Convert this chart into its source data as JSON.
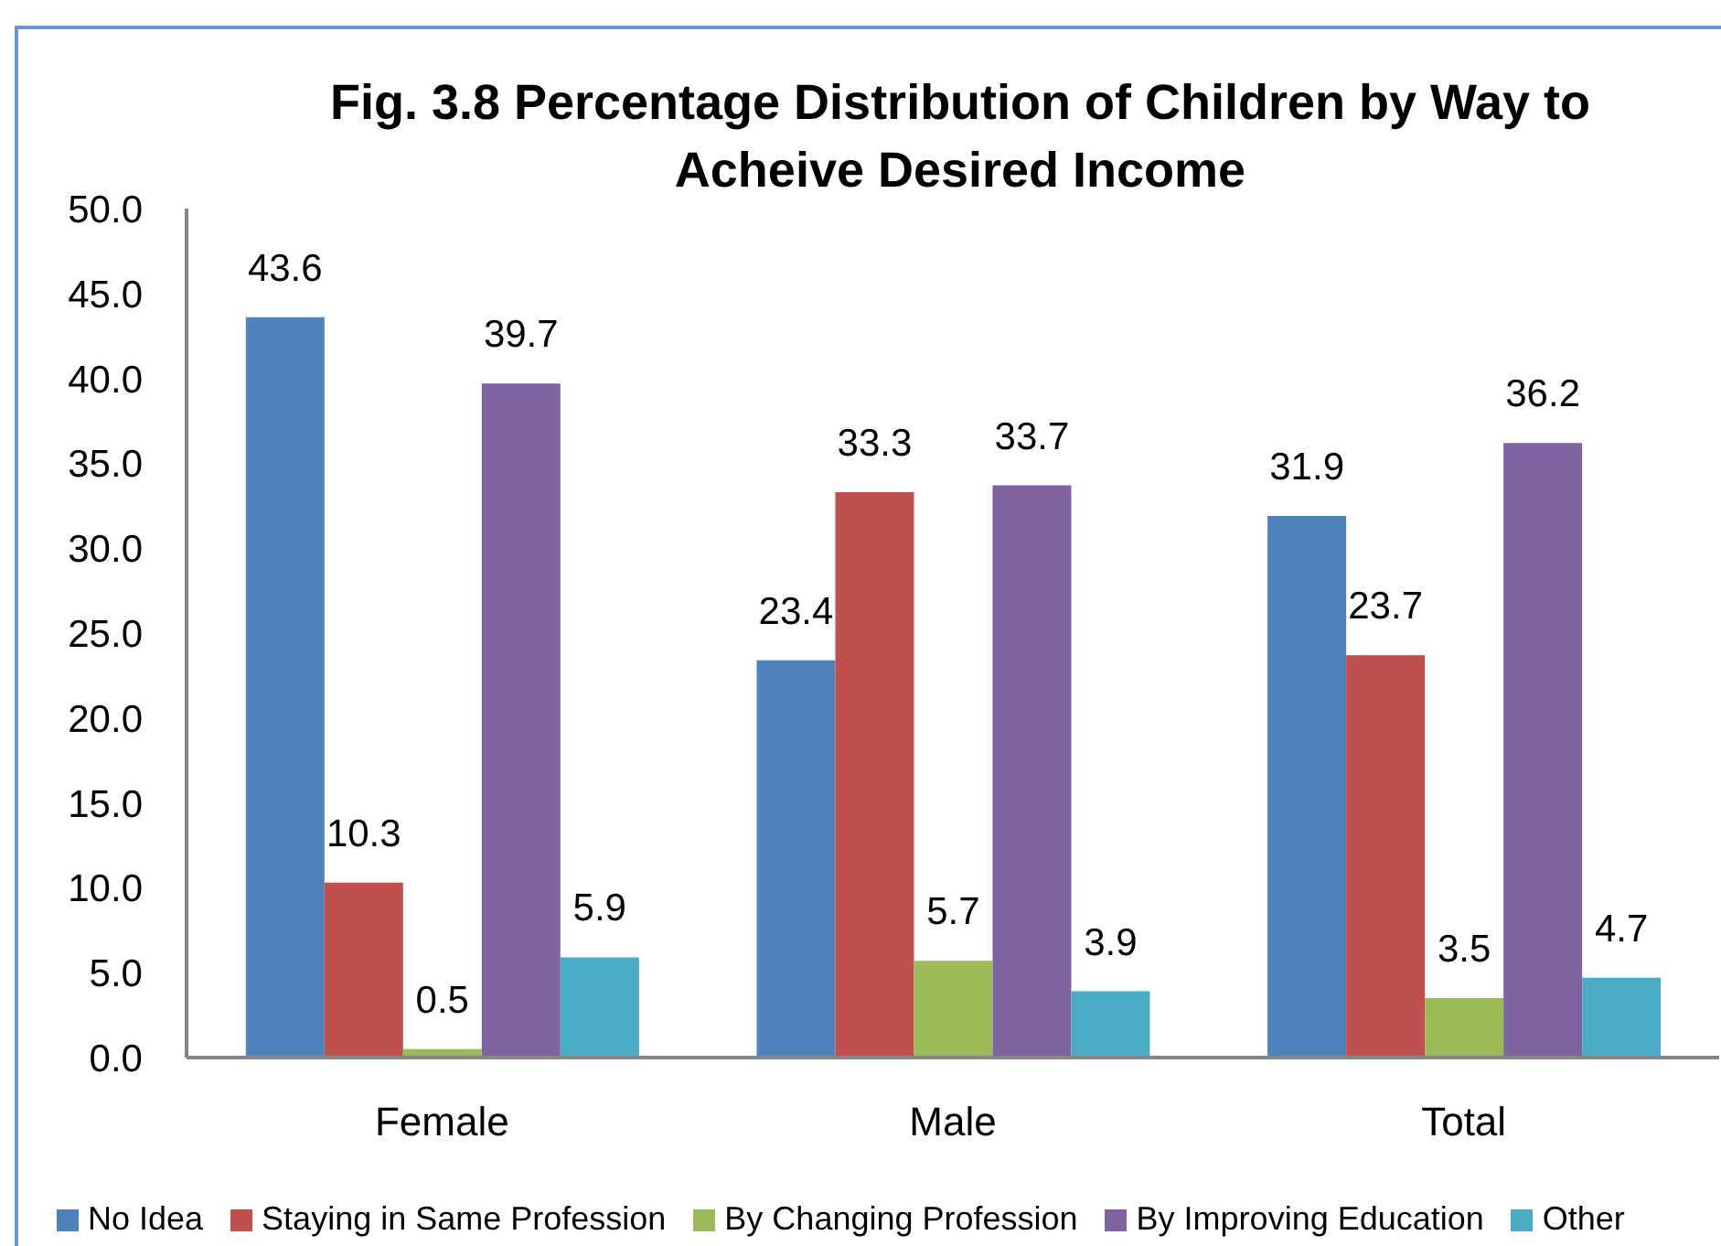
{
  "chart_data": {
    "type": "bar",
    "title": "Fig. 3.8 Percentage Distribution of Children by Way to Acheive Desired Income",
    "categories": [
      "Female",
      "Male",
      "Total"
    ],
    "series": [
      {
        "name": "No Idea",
        "color": "#4f81bd",
        "values": [
          43.6,
          23.4,
          31.9
        ]
      },
      {
        "name": "Staying in Same Profession",
        "color": "#c0504d",
        "values": [
          10.3,
          33.3,
          23.7
        ]
      },
      {
        "name": "By Changing Profession",
        "color": "#9bbb59",
        "values": [
          0.5,
          5.7,
          3.5
        ]
      },
      {
        "name": "By Improving Education",
        "color": "#8064a2",
        "values": [
          39.7,
          33.7,
          36.2
        ]
      },
      {
        "name": "Other",
        "color": "#4bacc6",
        "values": [
          5.9,
          3.9,
          4.7
        ]
      }
    ],
    "ylim": [
      0,
      50
    ],
    "yticks": [
      {
        "value": 0,
        "label": "0.0"
      },
      {
        "value": 5,
        "label": "5.0"
      },
      {
        "value": 10,
        "label": "10.0"
      },
      {
        "value": 15,
        "label": "15.0"
      },
      {
        "value": 20,
        "label": "20.0"
      },
      {
        "value": 25,
        "label": "25.0"
      },
      {
        "value": 30,
        "label": "30.0"
      },
      {
        "value": 35,
        "label": "35.0"
      },
      {
        "value": 40,
        "label": "40.0"
      },
      {
        "value": 45,
        "label": "45.0"
      },
      {
        "value": 50,
        "label": "50.0"
      }
    ],
    "data_labels": true,
    "legend": "bottom"
  }
}
